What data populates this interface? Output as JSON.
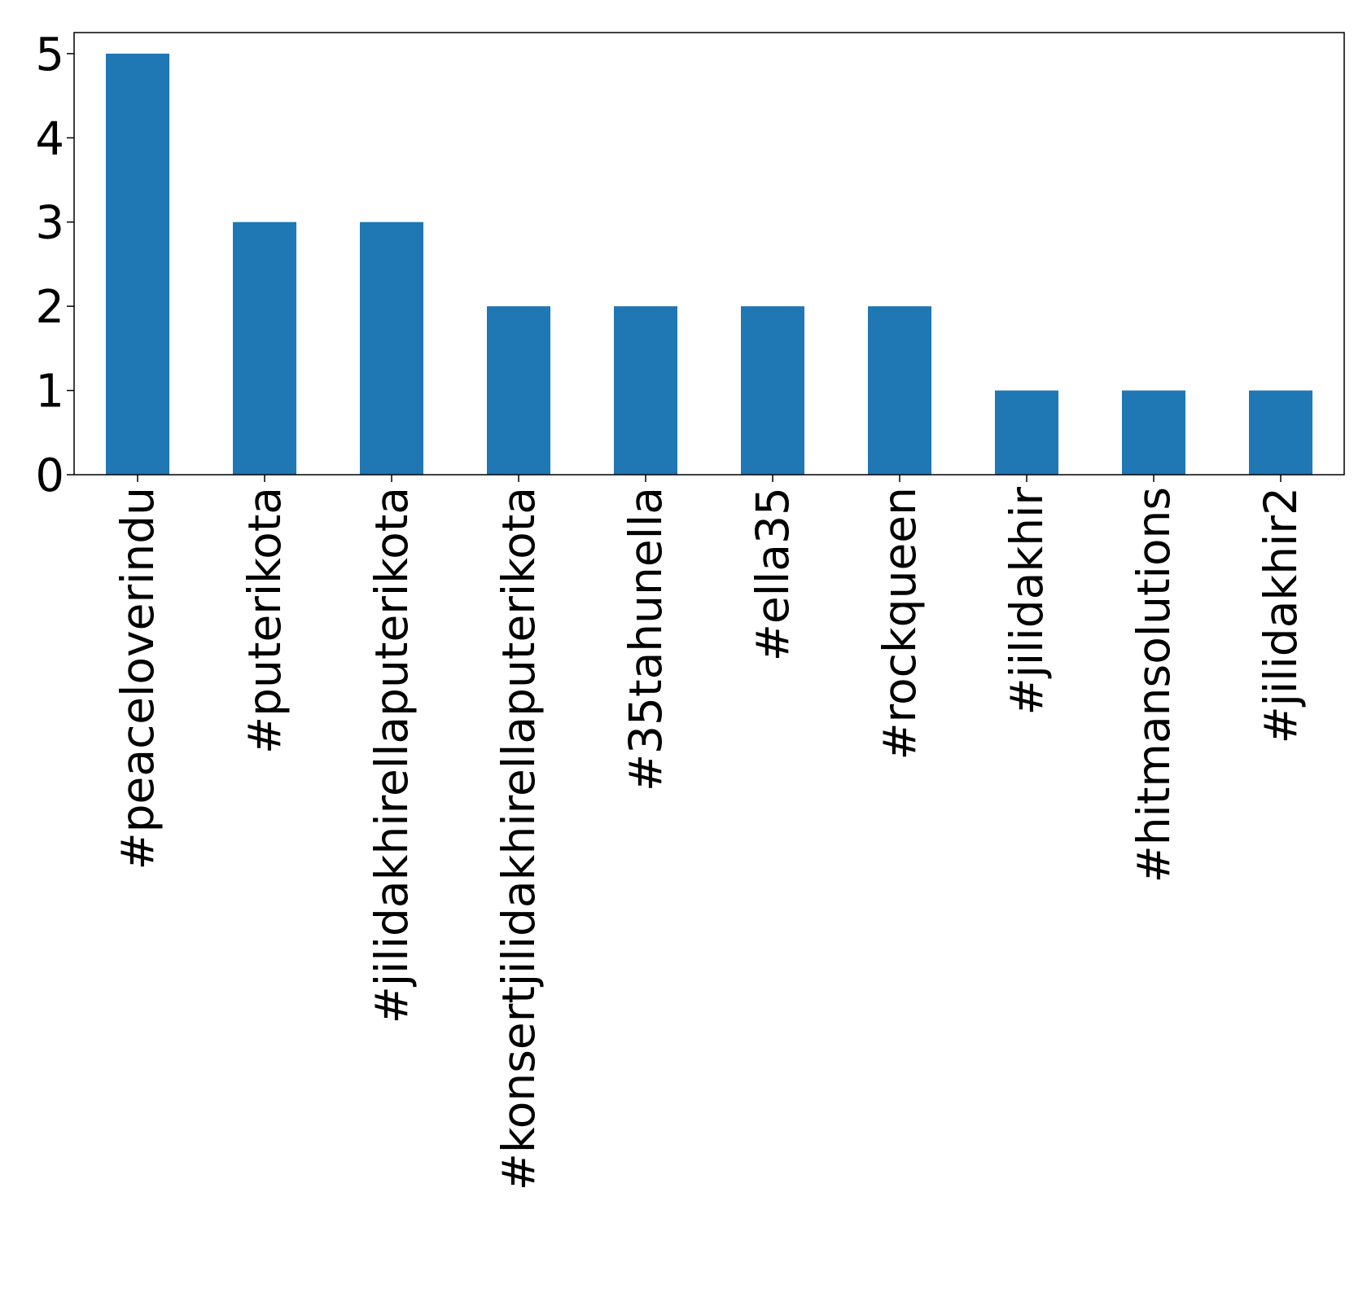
{
  "chart_data": {
    "type": "bar",
    "title": "",
    "xlabel": "",
    "ylabel": "",
    "categories": [
      "#peaceloverindu",
      "#puterikota",
      "#jilidakhirellaputerikota",
      "#konsertjilidakhirellaputerikota",
      "#35tahunella",
      "#ella35",
      "#rockqueen",
      "#jilidakhir",
      "#hitmansolutions",
      "#jilidakhir2"
    ],
    "values": [
      5,
      3,
      3,
      2,
      2,
      2,
      2,
      1,
      1,
      1
    ],
    "ylim": [
      0,
      5.25
    ],
    "yticks": [
      0,
      1,
      2,
      3,
      4,
      5
    ],
    "ytick_labels": [
      "0",
      "1",
      "2",
      "3",
      "4",
      "5"
    ],
    "grid": false,
    "legend": "none",
    "bar_color": "#1f77b4"
  }
}
